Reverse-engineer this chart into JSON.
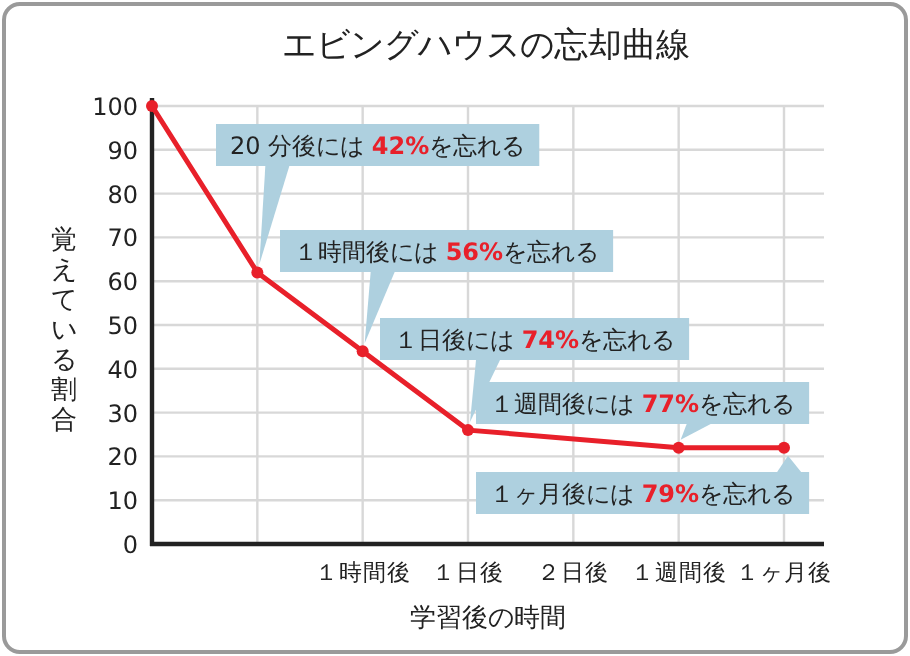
{
  "chart_data": {
    "type": "line",
    "title": "エビングハウスの忘却曲線",
    "xlabel": "学習後の時間",
    "ylabel": "覚えている割合",
    "categories": [
      null,
      null,
      "１時間後",
      "１日後",
      "２日後",
      "１週間後",
      "１ヶ月後"
    ],
    "series": [
      {
        "color": "#e8202a",
        "values": [
          100,
          62,
          44,
          26,
          null,
          22,
          22
        ]
      }
    ],
    "ylim": [
      0,
      100
    ],
    "yticks": [
      0,
      10,
      20,
      30,
      40,
      50,
      60,
      70,
      80,
      90,
      100
    ],
    "grid": true,
    "marker": "circle",
    "line_style": "solid",
    "annotations": [
      "20 分後には **42%**を忘れる",
      "１時間後には **56%**を忘れる",
      "１日後には **74%**を忘れる",
      "１週間後には **77%**を忘れる",
      "１ヶ月後には **79%**を忘れる"
    ]
  }
}
